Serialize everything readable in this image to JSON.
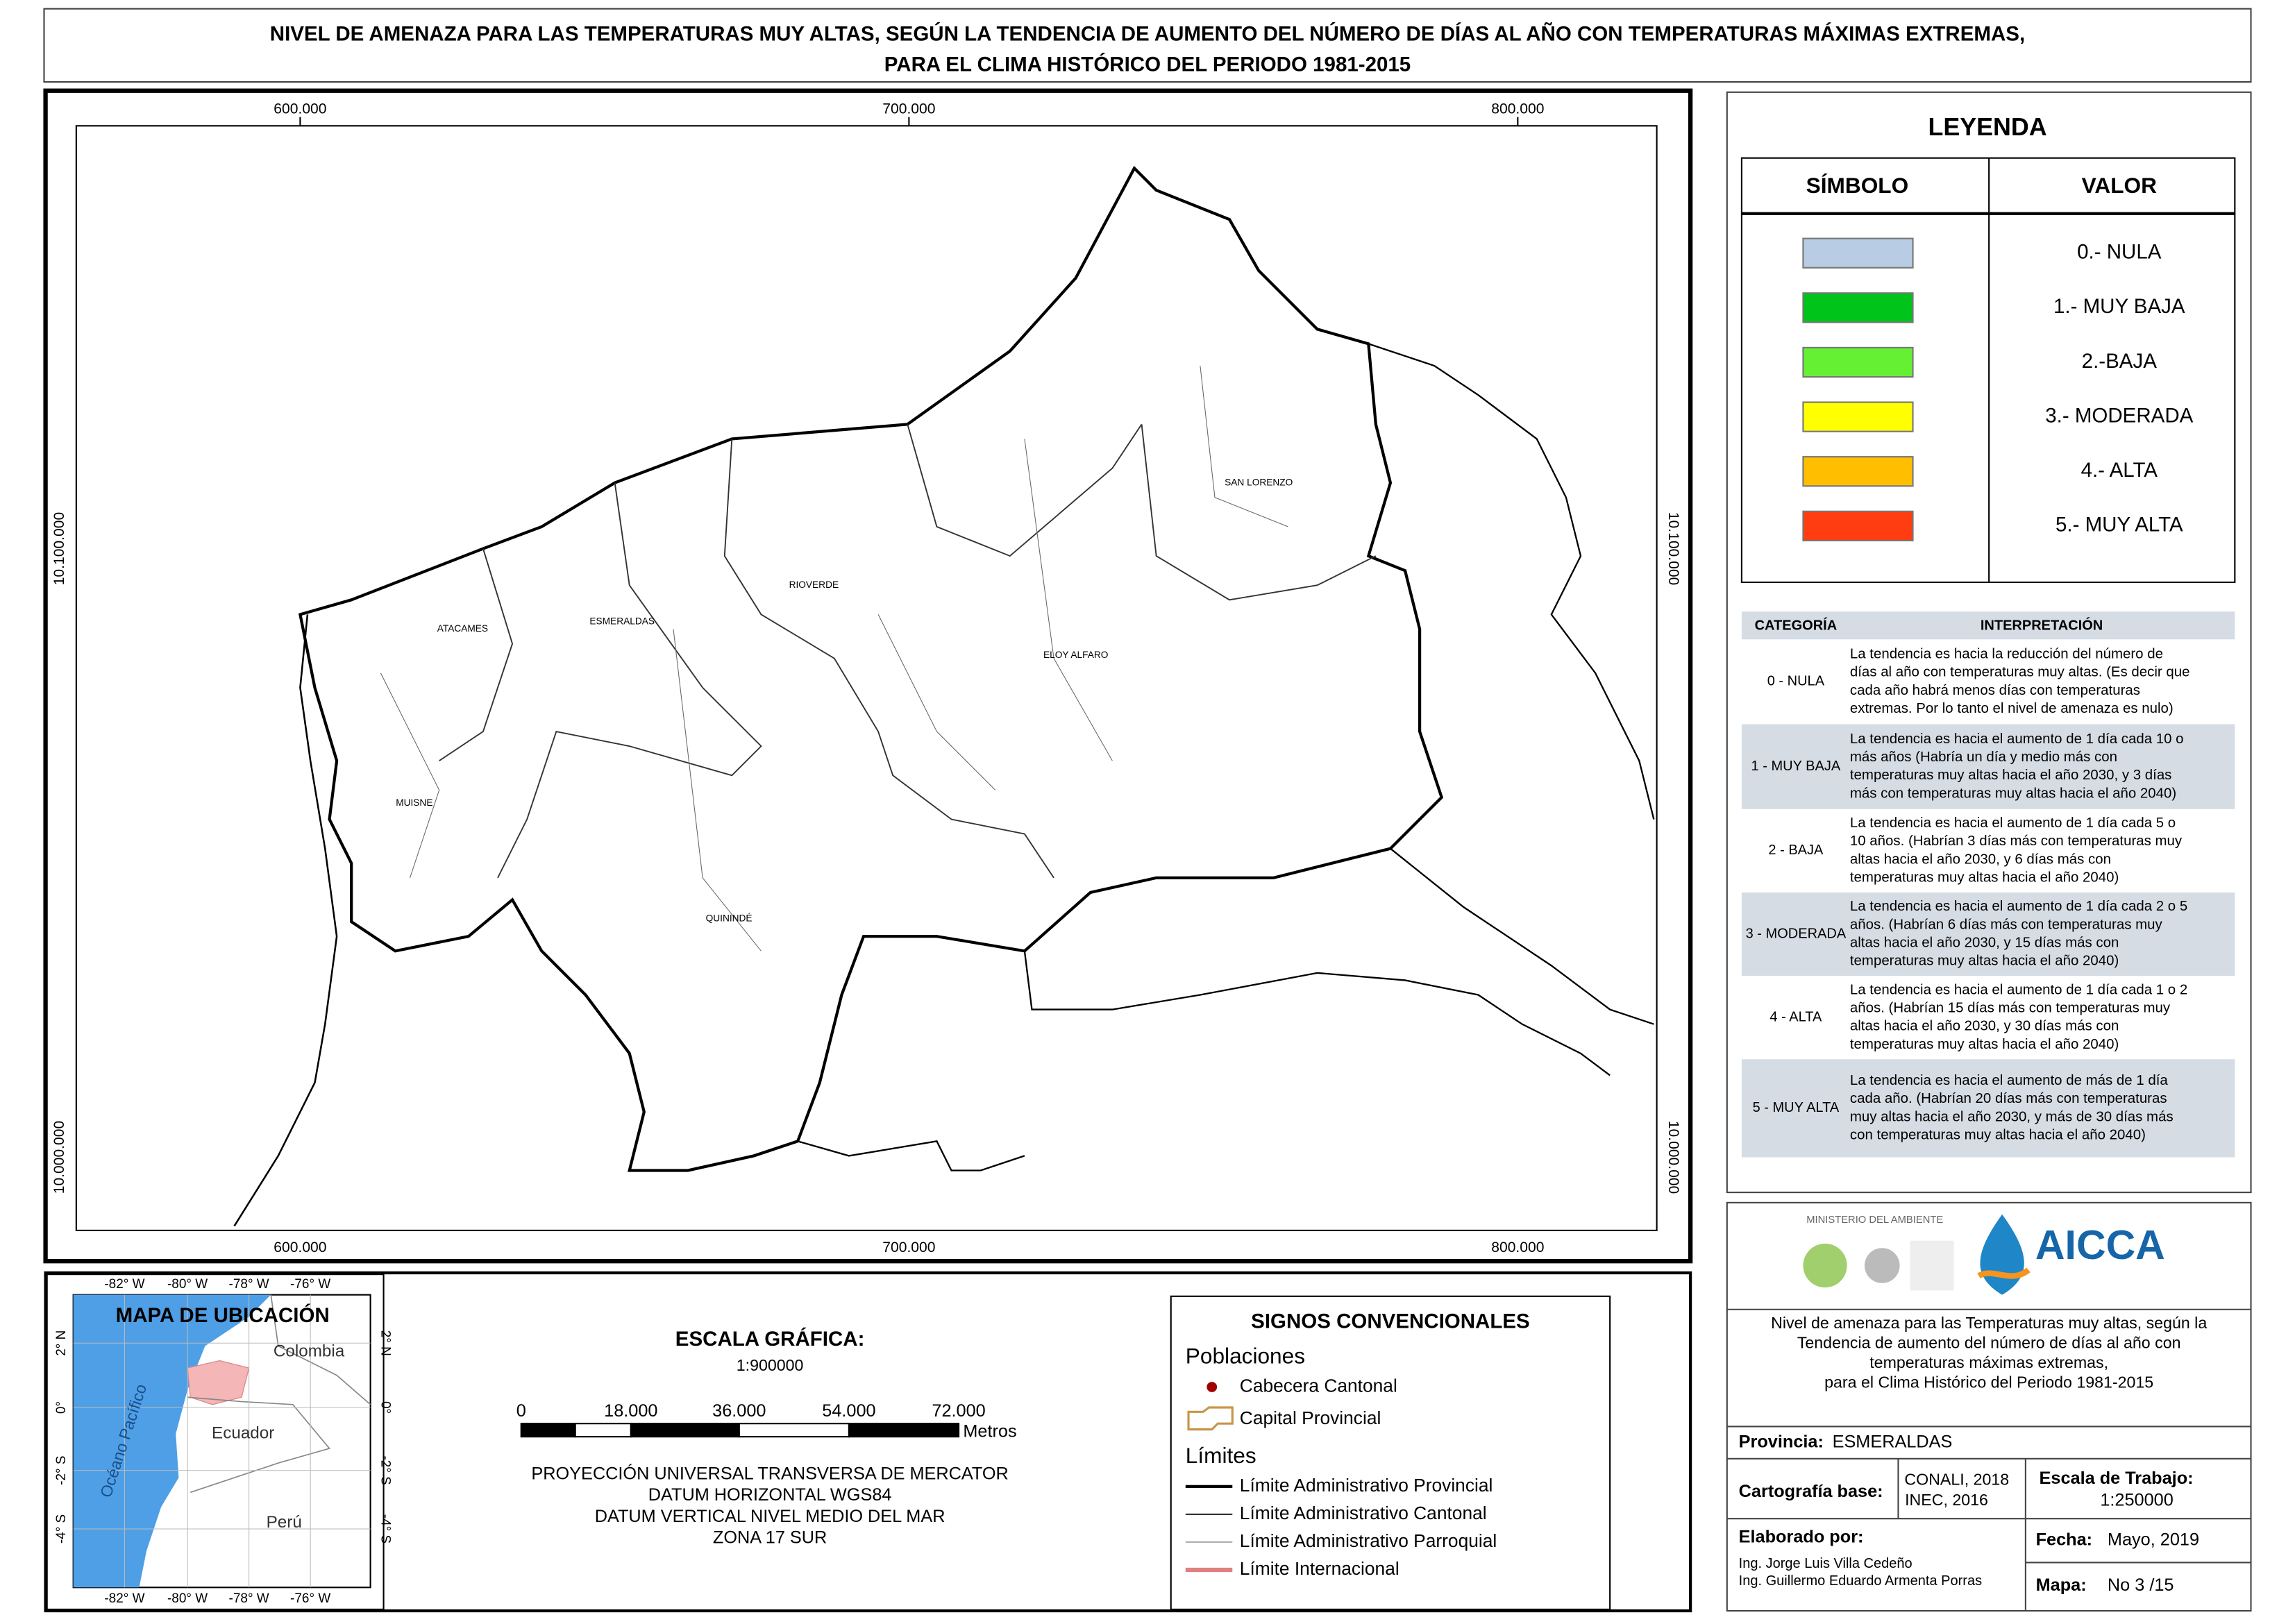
{
  "title": [
    "NIVEL DE AMENAZA PARA LAS TEMPERATURAS MUY ALTAS, SEGÚN LA TENDENCIA DE AUMENTO DEL NÚMERO DE DÍAS AL AÑO CON TEMPERATURAS MÁXIMAS EXTREMAS,",
    "PARA EL CLIMA HISTÓRICO DEL PERIODO 1981-2015"
  ],
  "map": {
    "x_ticks": [
      "600.000",
      "700.000",
      "800.000"
    ],
    "y_ticks": [
      "10.100.000",
      "10.000.000"
    ],
    "places": [
      "SAN LORENZO",
      "RIOVERDE",
      "ATACAMES",
      "ESMERALDAS",
      "ELOY ALFARO",
      "MUISNE",
      "QUININDÉ"
    ]
  },
  "legend": {
    "title": "LEYENDA",
    "headers": [
      "SÍMBOLO",
      "VALOR"
    ],
    "items": [
      {
        "label": "0.- NULA",
        "color": "#b8cce4"
      },
      {
        "label": "1.- MUY BAJA",
        "color": "#00c41a"
      },
      {
        "label": "2.-BAJA",
        "color": "#66f033"
      },
      {
        "label": "3.- MODERADA",
        "color": "#ffff00"
      },
      {
        "label": "4.- ALTA",
        "color": "#ffbf00"
      },
      {
        "label": "5.- MUY ALTA",
        "color": "#ff3d10"
      }
    ]
  },
  "interpretation": {
    "headers": [
      "CATEGORÍA",
      "INTERPRETACIÓN"
    ],
    "rows": [
      {
        "category": "0 - NULA",
        "lines": [
          "La tendencia es hacia la reducción del número de",
          "días al año con temperaturas muy altas. (Es decir que",
          "cada año habrá menos días con temperaturas",
          "extremas. Por lo tanto el nivel de amenaza es nulo)"
        ]
      },
      {
        "category": "1 - MUY BAJA",
        "lines": [
          "La tendencia es hacia el aumento de 1 día cada 10 o",
          "más años (Habría un día y medio más con",
          "temperaturas muy altas hacia el año 2030, y 3 días",
          "más con temperaturas muy altas hacia el año 2040)"
        ]
      },
      {
        "category": "2 - BAJA",
        "lines": [
          "La tendencia es hacia el aumento de 1 día cada 5 o",
          "10 años. (Habrían 3 días más con temperaturas muy",
          "altas hacia el año 2030, y 6 días más con",
          "temperaturas muy altas hacia el año 2040)"
        ]
      },
      {
        "category": "3 - MODERADA",
        "lines": [
          "La tendencia es hacia el aumento de 1 día cada 2 o 5",
          "años. (Habrían 6 días más con temperaturas muy",
          "altas hacia el año 2030, y 15 días más con",
          "temperaturas muy altas hacia el año 2040)"
        ]
      },
      {
        "category": "4 - ALTA",
        "lines": [
          "La tendencia es hacia el aumento de 1 día cada 1 o 2",
          "años. (Habrían 15 días más con temperaturas muy",
          "altas hacia el año 2030, y 30 días más con",
          "temperaturas muy altas hacia el año 2040)"
        ]
      },
      {
        "category": "5 - MUY ALTA",
        "lines": [
          "La tendencia es hacia el aumento de más de 1 día",
          "cada año. (Habrían 20 días más con temperaturas",
          "muy altas hacia el año 2030, y más de 30 días más",
          "con temperaturas muy altas hacia el año 2040)"
        ]
      }
    ]
  },
  "location_map": {
    "title": "MAPA DE UBICACIÓN",
    "lon_labels": [
      "-82° W",
      "-80° W",
      "-78° W",
      "-76° W"
    ],
    "lat_labels": [
      "2° N",
      "0°",
      "-2° S",
      "-4° S"
    ],
    "countries": [
      "Colombia",
      "Ecuador",
      "Perú"
    ],
    "ocean": "Océano Pacífico"
  },
  "scale": {
    "title": "ESCALA GRÁFICA:",
    "ratio": "1:900000",
    "ticks": [
      "0",
      "18.000",
      "36.000",
      "54.000",
      "72.000"
    ],
    "unit": "Metros",
    "projection": [
      "PROYECCIÓN UNIVERSAL TRANSVERSA DE MERCATOR",
      "DATUM HORIZONTAL WGS84",
      "DATUM VERTICAL NIVEL MEDIO DEL MAR",
      "ZONA 17 SUR"
    ]
  },
  "symbols": {
    "title": "SIGNOS CONVENCIONALES",
    "groups": [
      {
        "name": "Poblaciones",
        "items": [
          "Cabecera Cantonal",
          "Capital Provincial"
        ]
      },
      {
        "name": "Límites",
        "items": [
          "Límite Administrativo Provincial",
          "Límite Administrativo Cantonal",
          "Límite Administrativo Parroquial",
          "Límite Internacional"
        ]
      }
    ]
  },
  "logos": {
    "ministry": "MINISTERIO DEL AMBIENTE",
    "project": "AICCA"
  },
  "description": [
    "Nivel de amenaza para las Temperaturas muy altas, según la",
    "Tendencia de aumento del número de días al año con",
    "temperaturas máximas extremas,",
    "para el Clima Histórico del Periodo 1981-2015"
  ],
  "info": {
    "province_label": "Provincia:",
    "province": "ESMERALDAS",
    "cartography_label": "Cartografía base:",
    "cartography": [
      "CONALI, 2018",
      "INEC, 2016"
    ],
    "scale_label": "Escala de Trabajo:",
    "scale": "1:250000",
    "authors_label": "Elaborado por:",
    "authors": [
      "Ing. Jorge Luis Villa Cedeño",
      "Ing. Guillermo Eduardo Armenta Porras"
    ],
    "date_label": "Fecha:",
    "date": "Mayo, 2019",
    "map_label": "Mapa:",
    "map_number": "No 3 /15"
  }
}
